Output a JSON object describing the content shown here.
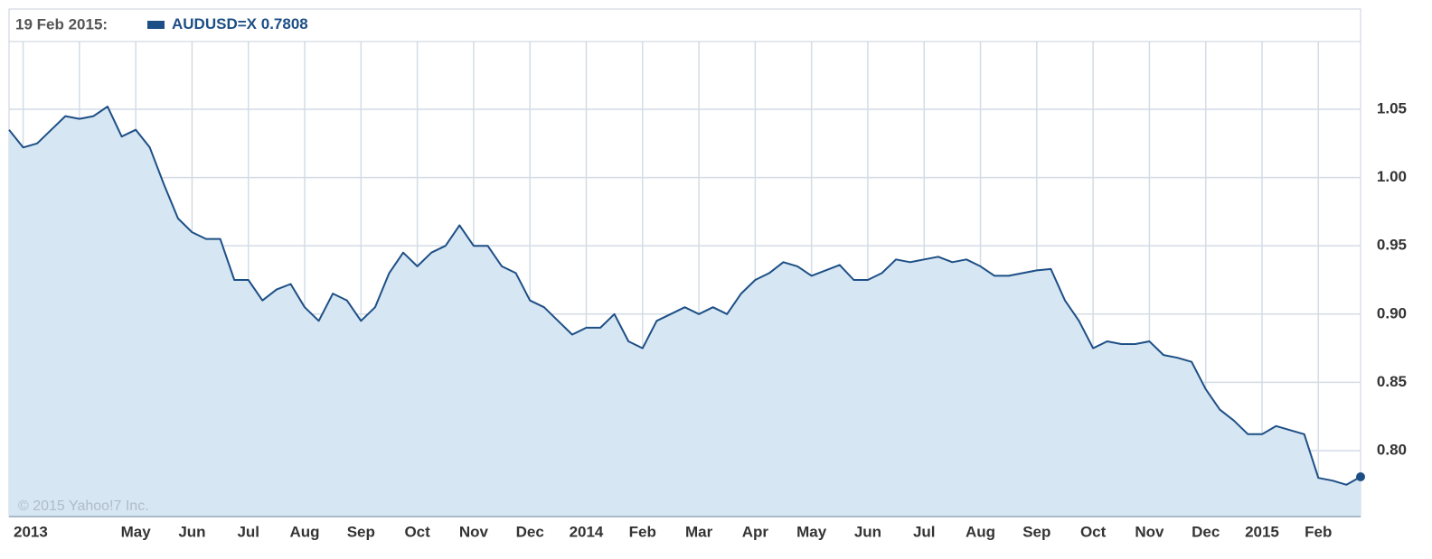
{
  "chart_data": {
    "type": "area",
    "header_date": "19 Feb 2015:",
    "credit": "© 2015 Yahoo!7 Inc.",
    "categories": [
      null,
      "2013",
      null,
      null,
      null,
      null,
      null,
      null,
      null,
      "May",
      null,
      null,
      null,
      "Jun",
      null,
      null,
      null,
      "Jul",
      null,
      null,
      null,
      "Aug",
      null,
      null,
      null,
      "Sep",
      null,
      null,
      null,
      "Oct",
      null,
      null,
      null,
      "Nov",
      null,
      null,
      null,
      "Dec",
      null,
      null,
      null,
      "2014",
      null,
      null,
      null,
      "Feb",
      null,
      null,
      null,
      "Mar",
      null,
      null,
      null,
      "Apr",
      null,
      null,
      null,
      "May",
      null,
      null,
      null,
      "Jun",
      null,
      null,
      null,
      "Jul",
      null,
      null,
      null,
      "Aug",
      null,
      null,
      null,
      "Sep",
      null,
      null,
      null,
      "Oct",
      null,
      null,
      null,
      "Nov",
      null,
      null,
      null,
      "Dec",
      null,
      null,
      null,
      "2015",
      null,
      null,
      null,
      "Feb",
      null,
      null,
      null
    ],
    "series": [
      {
        "name": "AUDUSD=X",
        "color": "#1d4f86",
        "fill": "#d6e6f2",
        "values": [
          1.035,
          1.022,
          1.025,
          1.035,
          1.045,
          1.043,
          1.045,
          1.052,
          1.03,
          1.035,
          1.022,
          0.995,
          0.97,
          0.96,
          0.955,
          0.955,
          0.925,
          0.925,
          0.91,
          0.918,
          0.922,
          0.905,
          0.895,
          0.915,
          0.91,
          0.895,
          0.905,
          0.93,
          0.945,
          0.935,
          0.945,
          0.95,
          0.965,
          0.95,
          0.95,
          0.935,
          0.93,
          0.91,
          0.905,
          0.895,
          0.885,
          0.89,
          0.89,
          0.9,
          0.88,
          0.875,
          0.895,
          0.9,
          0.905,
          0.9,
          0.905,
          0.9,
          0.915,
          0.925,
          0.93,
          0.938,
          0.935,
          0.928,
          0.932,
          0.936,
          0.925,
          0.925,
          0.93,
          0.94,
          0.938,
          0.94,
          0.942,
          0.938,
          0.94,
          0.935,
          0.928,
          0.928,
          0.93,
          0.932,
          0.933,
          0.91,
          0.895,
          0.875,
          0.88,
          0.878,
          0.878,
          0.88,
          0.87,
          0.868,
          0.865,
          0.845,
          0.83,
          0.822,
          0.812,
          0.812,
          0.818,
          0.815,
          0.812,
          0.78,
          0.778,
          0.775,
          0.7808
        ]
      }
    ],
    "ylim": [
      0.7517,
      1.0996
    ],
    "yticks": [
      {
        "value": 0.8,
        "label": "0.80"
      },
      {
        "value": 0.85,
        "label": "0.85"
      },
      {
        "value": 0.9,
        "label": "0.90"
      },
      {
        "value": 0.95,
        "label": "0.95"
      },
      {
        "value": 1.0,
        "label": "1.00"
      },
      {
        "value": 1.05,
        "label": "1.05"
      }
    ],
    "grid": true
  }
}
